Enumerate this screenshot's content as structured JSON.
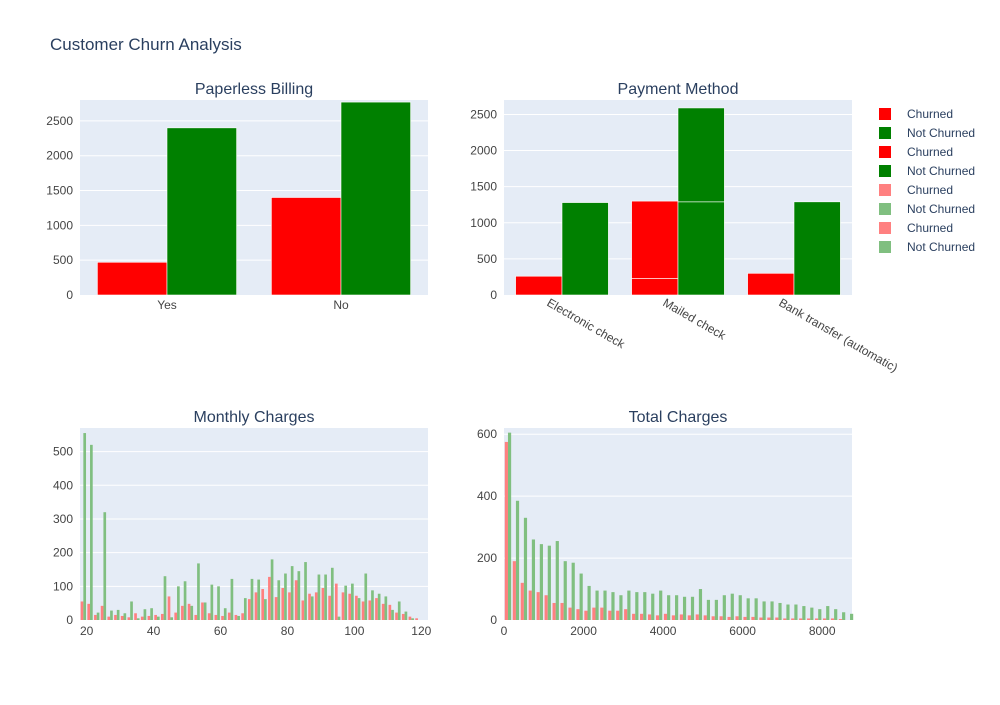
{
  "figure": {
    "title": "Customer Churn Analysis"
  },
  "colors": {
    "plot_bg": "#e5ecf6",
    "grid": "#ffffff",
    "text": "#2a3f5f",
    "axis_text": "#444444",
    "churned": "#ff0000",
    "not_churned": "#008000",
    "churned_light": "#ff8080",
    "not_churned_light": "#80bf80"
  },
  "legend": {
    "placement": "top-right",
    "items": [
      {
        "label": "Churned",
        "color": "#ff0000"
      },
      {
        "label": "Not Churned",
        "color": "#008000"
      },
      {
        "label": "Churned",
        "color": "#ff0000"
      },
      {
        "label": "Not Churned",
        "color": "#008000"
      },
      {
        "label": "Churned",
        "color": "#ff8080"
      },
      {
        "label": "Not Churned",
        "color": "#80bf80"
      },
      {
        "label": "Churned",
        "color": "#ff8080"
      },
      {
        "label": "Not Churned",
        "color": "#80bf80"
      }
    ]
  },
  "chart_data": [
    {
      "type": "bar",
      "title": "Paperless Billing",
      "categories": [
        "Yes",
        "No"
      ],
      "ylim": [
        0,
        2800
      ],
      "yticks": [
        0,
        500,
        1000,
        1500,
        2000,
        2500
      ],
      "series": [
        {
          "name": "Churned",
          "values": [
            470,
            1400
          ]
        },
        {
          "name": "Not Churned",
          "values": [
            2400,
            2770
          ]
        }
      ],
      "grid": true
    },
    {
      "type": "bar",
      "title": "Payment Method",
      "categories": [
        "Electronic check",
        "Mailed check",
        "Bank transfer (automatic)"
      ],
      "ylim": [
        0,
        2700
      ],
      "yticks": [
        0,
        500,
        1000,
        1500,
        2000,
        2500
      ],
      "stacked_segments": true,
      "series": [
        {
          "name": "Churned",
          "segments": [
            [
              260
            ],
            [
              230,
              1070
            ],
            [
              300
            ]
          ]
        },
        {
          "name": "Not Churned",
          "segments": [
            [
              1280
            ],
            [
              1290,
              1300
            ],
            [
              1290
            ]
          ]
        }
      ],
      "grid": true
    },
    {
      "type": "bar",
      "title": "Monthly Charges",
      "xlim": [
        18,
        122
      ],
      "xticks": [
        20,
        40,
        60,
        80,
        100,
        120
      ],
      "ylim": [
        0,
        570
      ],
      "yticks": [
        0,
        100,
        200,
        300,
        400,
        500
      ],
      "bin_width": 2,
      "x": [
        18,
        20,
        22,
        24,
        26,
        28,
        30,
        32,
        34,
        36,
        38,
        40,
        42,
        44,
        46,
        48,
        50,
        52,
        54,
        56,
        58,
        60,
        62,
        64,
        66,
        68,
        70,
        72,
        74,
        76,
        78,
        80,
        82,
        84,
        86,
        88,
        90,
        92,
        94,
        96,
        98,
        100,
        102,
        104,
        106,
        108,
        110,
        112,
        114,
        116,
        118
      ],
      "series": [
        {
          "name": "Churned",
          "values": [
            55,
            48,
            15,
            42,
            10,
            15,
            12,
            8,
            20,
            10,
            12,
            15,
            18,
            70,
            22,
            42,
            48,
            15,
            52,
            20,
            15,
            12,
            22,
            15,
            20,
            62,
            82,
            92,
            128,
            68,
            95,
            82,
            118,
            58,
            78,
            82,
            95,
            72,
            108,
            82,
            78,
            72,
            55,
            58,
            65,
            48,
            45,
            22,
            18,
            10,
            5
          ]
        },
        {
          "name": "Not Churned",
          "values": [
            555,
            520,
            22,
            320,
            28,
            30,
            20,
            55,
            5,
            32,
            35,
            10,
            130,
            8,
            100,
            115,
            42,
            168,
            52,
            105,
            100,
            35,
            122,
            12,
            65,
            122,
            120,
            62,
            180,
            118,
            138,
            160,
            145,
            172,
            70,
            135,
            135,
            155,
            10,
            102,
            108,
            65,
            138,
            88,
            78,
            70,
            30,
            55,
            25,
            5,
            0
          ]
        }
      ],
      "grid": true
    },
    {
      "type": "bar",
      "title": "Total Charges",
      "xlim": [
        0,
        8750
      ],
      "xticks": [
        0,
        2000,
        4000,
        6000,
        8000
      ],
      "ylim": [
        0,
        620
      ],
      "yticks": [
        0,
        200,
        400,
        600
      ],
      "bin_width": 200,
      "x": [
        0,
        200,
        400,
        600,
        800,
        1000,
        1200,
        1400,
        1600,
        1800,
        2000,
        2200,
        2400,
        2600,
        2800,
        3000,
        3200,
        3400,
        3600,
        3800,
        4000,
        4200,
        4400,
        4600,
        4800,
        5000,
        5200,
        5400,
        5600,
        5800,
        6000,
        6200,
        6400,
        6600,
        6800,
        7000,
        7200,
        7400,
        7600,
        7800,
        8000,
        8200,
        8400,
        8600
      ],
      "series": [
        {
          "name": "Churned",
          "values": [
            575,
            190,
            120,
            95,
            90,
            80,
            55,
            55,
            40,
            35,
            30,
            40,
            40,
            30,
            30,
            35,
            20,
            20,
            18,
            15,
            20,
            15,
            18,
            15,
            18,
            15,
            12,
            12,
            10,
            12,
            10,
            10,
            8,
            8,
            8,
            5,
            5,
            5,
            5,
            5,
            5,
            5,
            3,
            0
          ]
        },
        {
          "name": "Not Churned",
          "values": [
            605,
            385,
            330,
            260,
            245,
            240,
            255,
            190,
            185,
            150,
            110,
            95,
            95,
            90,
            80,
            95,
            90,
            90,
            85,
            95,
            80,
            80,
            75,
            75,
            100,
            65,
            65,
            80,
            85,
            80,
            70,
            70,
            60,
            60,
            55,
            50,
            50,
            45,
            40,
            35,
            45,
            35,
            25,
            20
          ]
        }
      ],
      "grid": true
    }
  ]
}
